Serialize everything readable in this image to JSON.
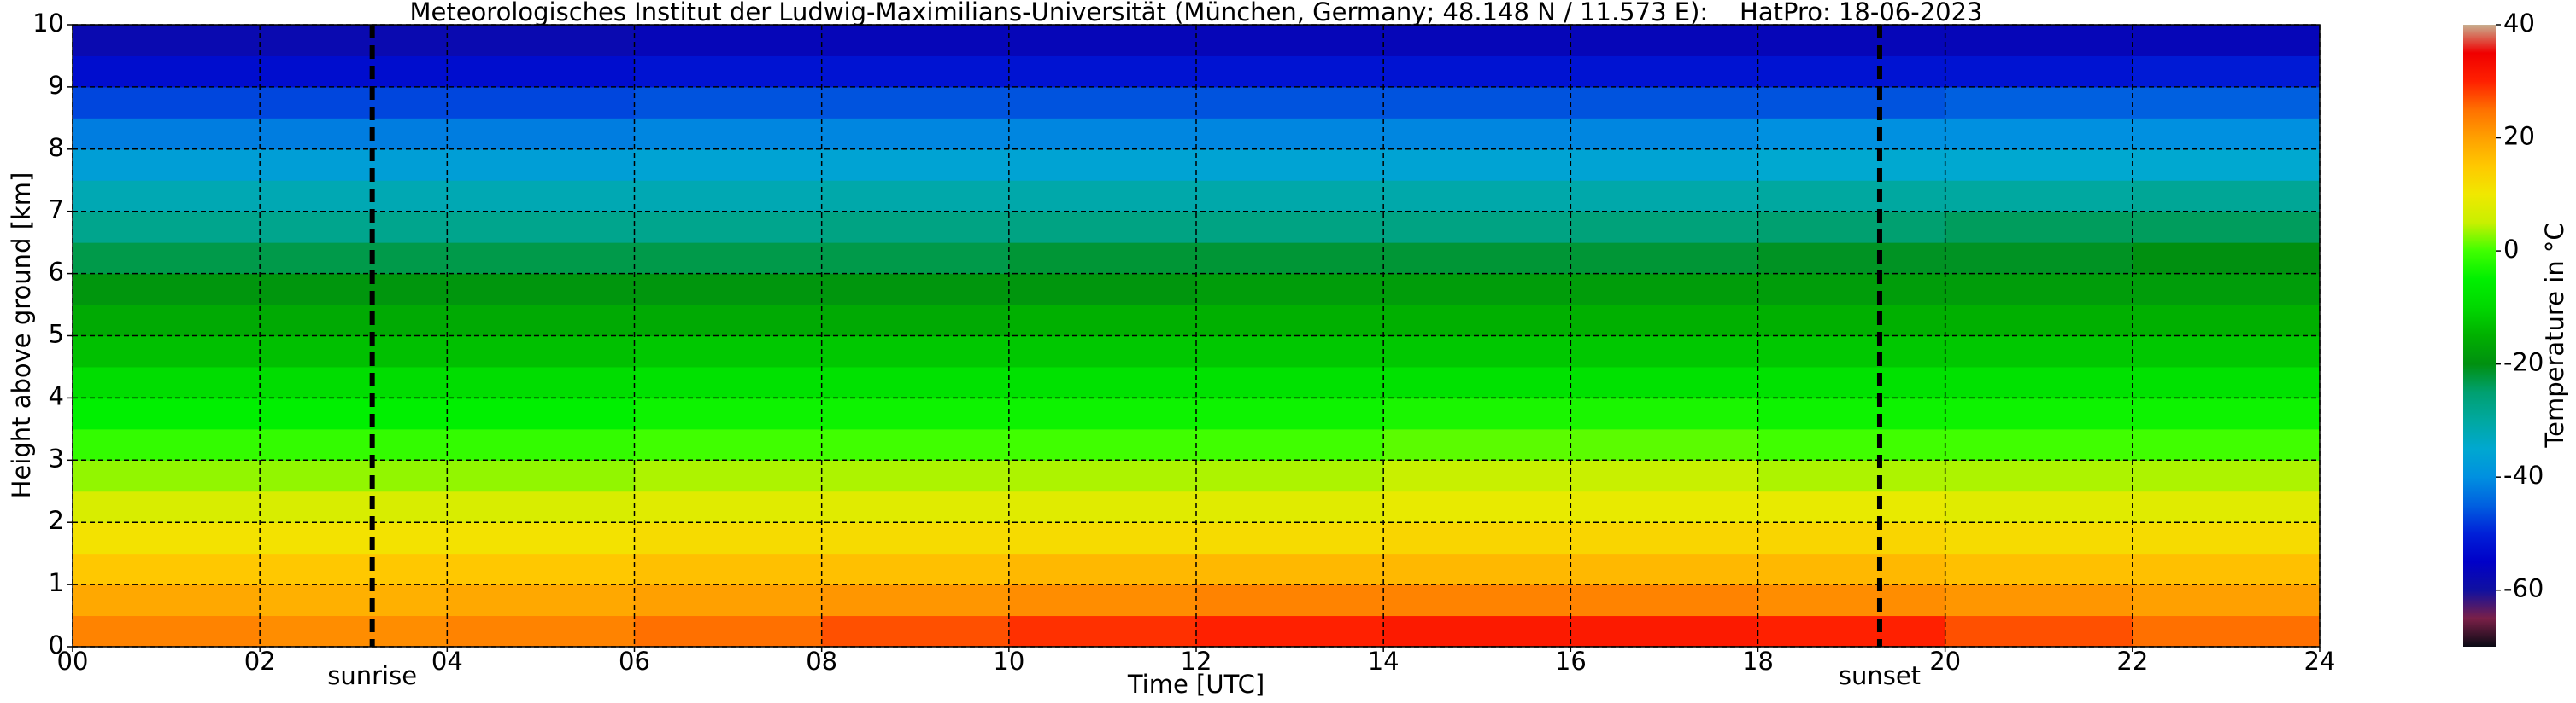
{
  "chart_data": {
    "type": "heatmap",
    "title": "Meteorologisches Institut der Ludwig-Maximilians-Universität (München, Germany; 48.148 N / 11.573 E):    HatPro: 18-06-2023",
    "x_label": "Time [UTC]",
    "y_label": "Height above ground [km]",
    "colorbar_label": "Temperature in °C",
    "xbins": [
      0,
      2,
      4,
      6,
      8,
      10,
      12,
      14,
      16,
      18,
      20,
      22,
      24
    ],
    "ybins": [
      0,
      0.5,
      1,
      1.5,
      2,
      2.5,
      3,
      3.5,
      4,
      4.5,
      5,
      5.5,
      6,
      6.5,
      7,
      7.5,
      8,
      8.5,
      9,
      9.5,
      10
    ],
    "values": [
      [
        23,
        22,
        23,
        25,
        27,
        29,
        30,
        31,
        31,
        30,
        27,
        25
      ],
      [
        19,
        18,
        19,
        20,
        21,
        22,
        23,
        23,
        23,
        22,
        21,
        20
      ],
      [
        15,
        15,
        15,
        16,
        16,
        17,
        17,
        17,
        17,
        17,
        16,
        16
      ],
      [
        11,
        11,
        11,
        12,
        12,
        12,
        12,
        13,
        13,
        13,
        12,
        12
      ],
      [
        7,
        7,
        7,
        8,
        8,
        8,
        8,
        9,
        9,
        9,
        8,
        8
      ],
      [
        3,
        3,
        3,
        4,
        4,
        4,
        4,
        5,
        5,
        4,
        4,
        4
      ],
      [
        -1,
        -1,
        -1,
        0,
        0,
        0,
        0,
        1,
        1,
        0,
        0,
        0
      ],
      [
        -5,
        -5,
        -5,
        -4,
        -4,
        -4,
        -4,
        -3,
        -3,
        -4,
        -4,
        -4
      ],
      [
        -9,
        -9,
        -9,
        -8,
        -8,
        -8,
        -8,
        -8,
        -8,
        -8,
        -8,
        -8
      ],
      [
        -13,
        -13,
        -13,
        -12,
        -12,
        -12,
        -12,
        -12,
        -12,
        -12,
        -12,
        -12
      ],
      [
        -16,
        -16,
        -16,
        -16,
        -16,
        -15,
        -15,
        -15,
        -15,
        -15,
        -15,
        -15
      ],
      [
        -19,
        -19,
        -19,
        -19,
        -19,
        -19,
        -18,
        -18,
        -18,
        -18,
        -18,
        -18
      ],
      [
        -23,
        -23,
        -23,
        -23,
        -23,
        -22,
        -22,
        -22,
        -22,
        -21,
        -21,
        -20
      ],
      [
        -28,
        -28,
        -28,
        -28,
        -27,
        -27,
        -27,
        -27,
        -26,
        -25,
        -24,
        -24
      ],
      [
        -32,
        -32,
        -32,
        -32,
        -31,
        -31,
        -31,
        -31,
        -31,
        -30,
        -30,
        -29
      ],
      [
        -37,
        -37,
        -37,
        -36,
        -36,
        -36,
        -36,
        -36,
        -36,
        -35,
        -35,
        -35
      ],
      [
        -42,
        -42,
        -42,
        -41,
        -41,
        -41,
        -41,
        -41,
        -41,
        -40,
        -40,
        -40
      ],
      [
        -47,
        -47,
        -47,
        -46,
        -46,
        -46,
        -46,
        -46,
        -46,
        -46,
        -45,
        -45
      ],
      [
        -53,
        -53,
        -53,
        -52,
        -52,
        -52,
        -52,
        -52,
        -52,
        -52,
        -52,
        -51
      ],
      [
        -58,
        -58,
        -58,
        -57,
        -57,
        -57,
        -57,
        -57,
        -57,
        -57,
        -57,
        -57
      ]
    ],
    "xlim": [
      0,
      24
    ],
    "xticks": [
      {
        "value": 0,
        "label": "00"
      },
      {
        "value": 2,
        "label": "02"
      },
      {
        "value": 4,
        "label": "04"
      },
      {
        "value": 6,
        "label": "06"
      },
      {
        "value": 8,
        "label": "08"
      },
      10,
      12,
      14,
      16,
      18,
      20,
      22,
      24
    ],
    "ylim": [
      0,
      10
    ],
    "yticks": [
      0,
      1,
      2,
      3,
      4,
      5,
      6,
      7,
      8,
      9,
      10
    ],
    "zlim": [
      -70,
      40
    ],
    "zticks": [
      -60,
      -40,
      -20,
      0,
      20,
      40
    ],
    "colorscale": [
      "#0a0a14",
      "#7a2048",
      "#1010a0",
      "#0000c8",
      "#0020d8",
      "#0060e0",
      "#0090e0",
      "#00a8d0",
      "#00a8a0",
      "#00a070",
      "#009010",
      "#00b000",
      "#00d800",
      "#00f000",
      "#40ff00",
      "#c8f000",
      "#f0e800",
      "#ffc800",
      "#ffa000",
      "#ff7000",
      "#ff2000",
      "#f00000",
      "#c8b090"
    ],
    "grid": true,
    "annotations": [
      {
        "text": "sunrise",
        "x": 3.2
      },
      {
        "text": "sunset",
        "x": 19.3
      }
    ]
  }
}
